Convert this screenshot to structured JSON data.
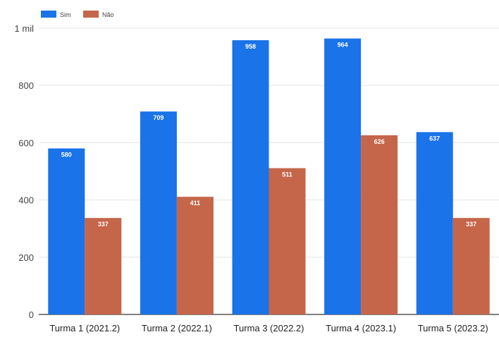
{
  "chart_data": {
    "type": "bar",
    "categories": [
      "Turma 1 (2021.2)",
      "Turma 2 (2022.1)",
      "Turma 3 (2022.2)",
      "Turma 4 (2023.1)",
      "Turma 5 (2023.2)"
    ],
    "series": [
      {
        "name": "Sim",
        "color": "#1a73e8",
        "values": [
          580,
          709,
          958,
          964,
          637
        ]
      },
      {
        "name": "Não",
        "color": "#c5664a",
        "values": [
          337,
          411,
          511,
          626,
          337
        ]
      }
    ],
    "ylim": [
      0,
      1000
    ],
    "yticks": [
      0,
      200,
      400,
      600,
      800,
      1000
    ],
    "ytick_labels": [
      "0",
      "200",
      "400",
      "600",
      "800",
      "1 mil"
    ],
    "grid": true,
    "legend_position": "top-left",
    "title": "",
    "xlabel": "",
    "ylabel": ""
  }
}
